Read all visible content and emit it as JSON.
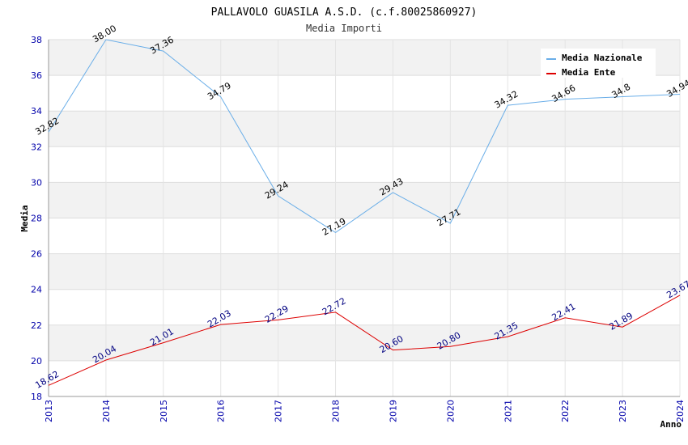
{
  "chart_data": {
    "type": "line",
    "title": "PALLAVOLO GUASILA A.S.D. (c.f.80025860927)",
    "subtitle": "Media Importi",
    "xlabel": "Anno",
    "ylabel": "Media",
    "ylim": [
      18,
      38
    ],
    "yticks": [
      "18",
      "20",
      "22",
      "24",
      "26",
      "28",
      "30",
      "32",
      "34",
      "36",
      "38"
    ],
    "categories": [
      "2013",
      "2014",
      "2015",
      "2016",
      "2017",
      "2018",
      "2019",
      "2020",
      "2021",
      "2022",
      "2023",
      "2024"
    ],
    "grid": true,
    "legend_position": "top-right",
    "series": [
      {
        "name": "Media Nazionale",
        "color": "#6aaee8",
        "values": [
          32.82,
          38.0,
          37.36,
          34.79,
          29.24,
          27.19,
          29.43,
          27.71,
          34.32,
          34.66,
          34.8,
          34.94
        ],
        "labels": [
          "32.82",
          "38.00",
          "37.36",
          "34.79",
          "29.24",
          "27.19",
          "29.43",
          "27.71",
          "34.32",
          "34.66",
          "34.8",
          "34.94"
        ]
      },
      {
        "name": "Media Ente",
        "color": "#dd0000",
        "values": [
          18.62,
          20.04,
          21.01,
          22.03,
          22.29,
          22.72,
          20.6,
          20.8,
          21.35,
          22.41,
          21.89,
          23.67
        ],
        "labels": [
          "18.62",
          "20.04",
          "21.01",
          "22.03",
          "22.29",
          "22.72",
          "20.60",
          "20.80",
          "21.35",
          "22.41",
          "21.89",
          "23.67"
        ]
      }
    ]
  }
}
